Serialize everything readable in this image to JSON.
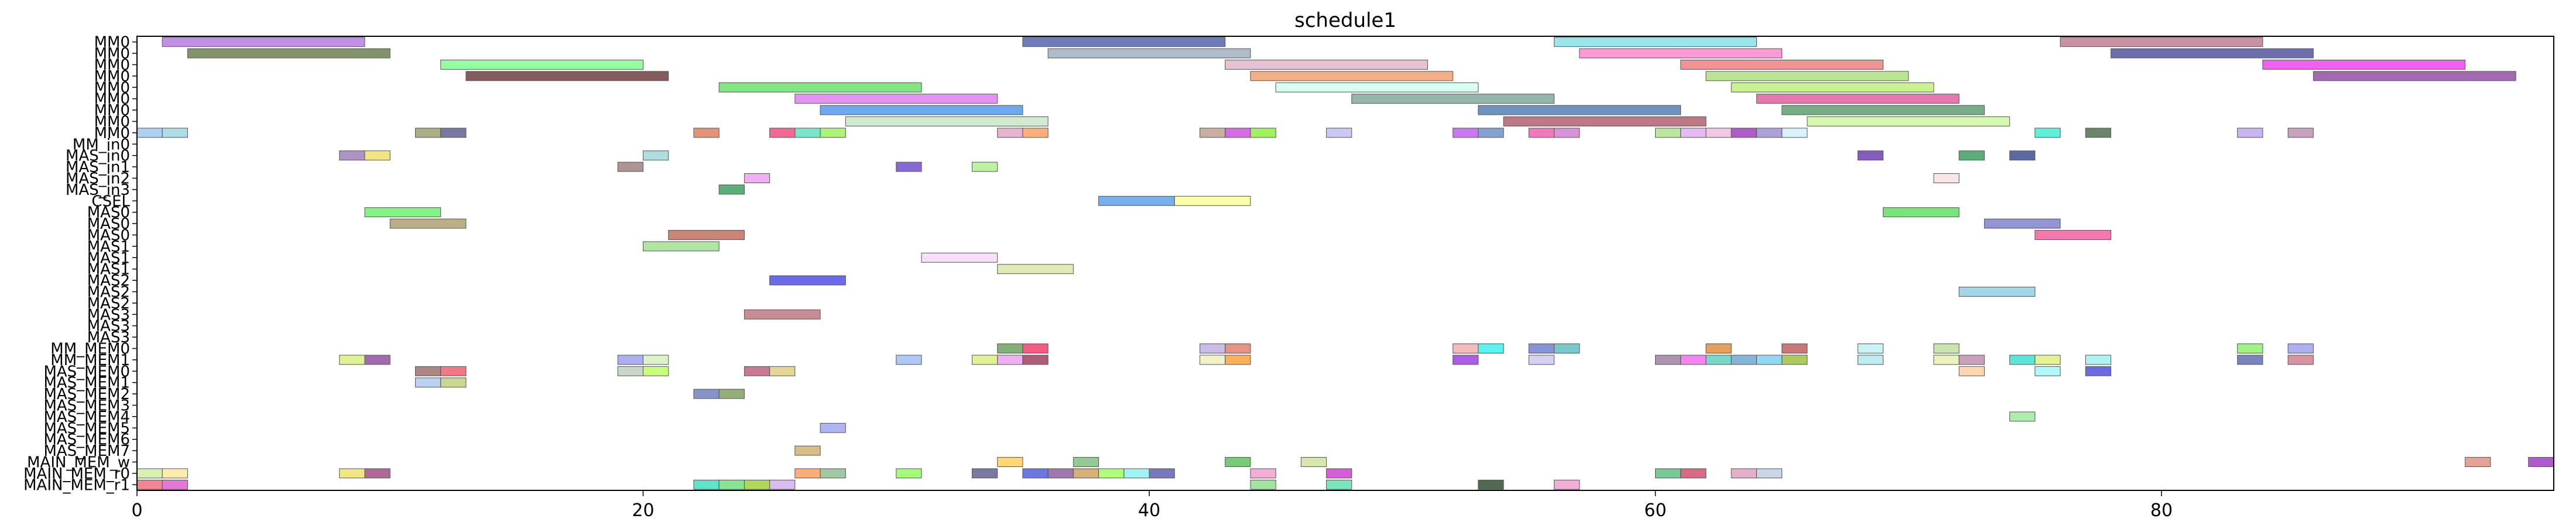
{
  "chart_data": {
    "type": "gantt",
    "title": "schedule1",
    "xlabel": "",
    "ylabel": "",
    "xlim": [
      0,
      95.5
    ],
    "xticks": [
      0,
      20,
      40,
      60,
      80
    ],
    "grid": false,
    "rows": [
      "MM0",
      "MM0",
      "MM0",
      "MM0",
      "MM0",
      "MM0",
      "MM0",
      "MM0",
      "MM0",
      "MM_in0",
      "MAS_in0",
      "MAS_in1",
      "MAS_in2",
      "MAS_in3",
      "CSEL",
      "MAS0",
      "MAS0",
      "MAS0",
      "MAS1",
      "MAS1",
      "MAS1",
      "MAS2",
      "MAS2",
      "MAS2",
      "MAS3",
      "MAS3",
      "MAS3",
      "MM_MEM0",
      "MM_MEM1",
      "MAS_MEM0",
      "MAS_MEM1",
      "MAS_MEM2",
      "MAS_MEM3",
      "MAS_MEM4",
      "MAS_MEM5",
      "MAS_MEM6",
      "MAS_MEM7",
      "MAIN_MEM_w",
      "MAIN_MEM_r0",
      "MAIN_MEM_r1"
    ],
    "tasks": [
      {
        "row": 0,
        "start": 1,
        "end": 9,
        "color": "#b57ee0"
      },
      {
        "row": 0,
        "start": 35,
        "end": 43,
        "color": "#5566aa"
      },
      {
        "row": 0,
        "start": 56,
        "end": 64,
        "color": "#88e0e8"
      },
      {
        "row": 0,
        "start": 76,
        "end": 84,
        "color": "#c07f90"
      },
      {
        "row": 1,
        "start": 2,
        "end": 10,
        "color": "#6b8050"
      },
      {
        "row": 1,
        "start": 36,
        "end": 44,
        "color": "#a0b0c0"
      },
      {
        "row": 1,
        "start": 57,
        "end": 65,
        "color": "#ff88cc"
      },
      {
        "row": 1,
        "start": 78,
        "end": 86,
        "color": "#5555a0"
      },
      {
        "row": 2,
        "start": 12,
        "end": 20,
        "color": "#80ff90"
      },
      {
        "row": 2,
        "start": 43,
        "end": 51,
        "color": "#e0b8cc"
      },
      {
        "row": 2,
        "start": 61,
        "end": 69,
        "color": "#f08080"
      },
      {
        "row": 2,
        "start": 84,
        "end": 92,
        "color": "#ee44ee"
      },
      {
        "row": 3,
        "start": 13,
        "end": 21,
        "color": "#704040"
      },
      {
        "row": 3,
        "start": 44,
        "end": 52,
        "color": "#f0a070"
      },
      {
        "row": 3,
        "start": 62,
        "end": 70,
        "color": "#b0e080"
      },
      {
        "row": 3,
        "start": 86,
        "end": 94,
        "color": "#9050a0"
      },
      {
        "row": 4,
        "start": 23,
        "end": 31,
        "color": "#70e070"
      },
      {
        "row": 4,
        "start": 45,
        "end": 53,
        "color": "#d0fff0"
      },
      {
        "row": 4,
        "start": 63,
        "end": 71,
        "color": "#c0f080"
      },
      {
        "row": 5,
        "start": 26,
        "end": 34,
        "color": "#e080f0"
      },
      {
        "row": 5,
        "start": 48,
        "end": 56,
        "color": "#80a8a0"
      },
      {
        "row": 5,
        "start": 64,
        "end": 72,
        "color": "#e060a0"
      },
      {
        "row": 6,
        "start": 27,
        "end": 35,
        "color": "#5599ee"
      },
      {
        "row": 6,
        "start": 53,
        "end": 61,
        "color": "#5580b0"
      },
      {
        "row": 6,
        "start": 65,
        "end": 73,
        "color": "#60a070"
      },
      {
        "row": 7,
        "start": 28,
        "end": 36,
        "color": "#c8e8c8"
      },
      {
        "row": 7,
        "start": 54,
        "end": 62,
        "color": "#b06070"
      },
      {
        "row": 7,
        "start": 66,
        "end": 74,
        "color": "#d0f8a0"
      },
      {
        "row": 8,
        "start": 0,
        "end": 1,
        "color": "#a0c8f0"
      },
      {
        "row": 8,
        "start": 1,
        "end": 2,
        "color": "#a0d8e0"
      },
      {
        "row": 8,
        "start": 11,
        "end": 12,
        "color": "#a0a070"
      },
      {
        "row": 8,
        "start": 12,
        "end": 13,
        "color": "#606090"
      },
      {
        "row": 8,
        "start": 22,
        "end": 23,
        "color": "#e08060"
      },
      {
        "row": 8,
        "start": 25,
        "end": 26,
        "color": "#f05080"
      },
      {
        "row": 8,
        "start": 26,
        "end": 27,
        "color": "#60e0c0"
      },
      {
        "row": 8,
        "start": 27,
        "end": 28,
        "color": "#a0f060"
      },
      {
        "row": 8,
        "start": 34,
        "end": 35,
        "color": "#e0a8c8"
      },
      {
        "row": 8,
        "start": 35,
        "end": 36,
        "color": "#ffa060"
      },
      {
        "row": 8,
        "start": 42,
        "end": 43,
        "color": "#c0a090"
      },
      {
        "row": 8,
        "start": 43,
        "end": 44,
        "color": "#d050e0"
      },
      {
        "row": 8,
        "start": 44,
        "end": 45,
        "color": "#90f040"
      },
      {
        "row": 8,
        "start": 47,
        "end": 48,
        "color": "#c0c0f0"
      },
      {
        "row": 8,
        "start": 52,
        "end": 53,
        "color": "#c060f0"
      },
      {
        "row": 8,
        "start": 53,
        "end": 54,
        "color": "#7090c8"
      },
      {
        "row": 8,
        "start": 55,
        "end": 56,
        "color": "#f060b0"
      },
      {
        "row": 8,
        "start": 56,
        "end": 57,
        "color": "#d080d0"
      },
      {
        "row": 8,
        "start": 60,
        "end": 61,
        "color": "#b0e090"
      },
      {
        "row": 8,
        "start": 61,
        "end": 62,
        "color": "#e0b0f0"
      },
      {
        "row": 8,
        "start": 62,
        "end": 63,
        "color": "#f0c0e0"
      },
      {
        "row": 8,
        "start": 63,
        "end": 64,
        "color": "#a040c0"
      },
      {
        "row": 8,
        "start": 64,
        "end": 65,
        "color": "#a090d0"
      },
      {
        "row": 8,
        "start": 65,
        "end": 66,
        "color": "#d0f0f8"
      },
      {
        "row": 8,
        "start": 75,
        "end": 76,
        "color": "#40f0d0"
      },
      {
        "row": 8,
        "start": 77,
        "end": 78,
        "color": "#507050"
      },
      {
        "row": 8,
        "start": 83,
        "end": 84,
        "color": "#c0a8f0"
      },
      {
        "row": 8,
        "start": 85,
        "end": 86,
        "color": "#c090b0"
      },
      {
        "row": 10,
        "start": 8,
        "end": 9,
        "color": "#a080b8"
      },
      {
        "row": 10,
        "start": 9,
        "end": 10,
        "color": "#f0e070"
      },
      {
        "row": 10,
        "start": 20,
        "end": 21,
        "color": "#a0d8d8"
      },
      {
        "row": 10,
        "start": 68,
        "end": 69,
        "color": "#7040b0"
      },
      {
        "row": 10,
        "start": 72,
        "end": 73,
        "color": "#40a060"
      },
      {
        "row": 10,
        "start": 74,
        "end": 75,
        "color": "#405090"
      },
      {
        "row": 11,
        "start": 19,
        "end": 20,
        "color": "#a08080"
      },
      {
        "row": 11,
        "start": 30,
        "end": 31,
        "color": "#7050d0"
      },
      {
        "row": 11,
        "start": 33,
        "end": 34,
        "color": "#b0f090"
      },
      {
        "row": 12,
        "start": 24,
        "end": 25,
        "color": "#f0a0f0"
      },
      {
        "row": 12,
        "start": 71,
        "end": 72,
        "color": "#f8e0e0"
      },
      {
        "row": 13,
        "start": 23,
        "end": 24,
        "color": "#40a060"
      },
      {
        "row": 14,
        "start": 38,
        "end": 41,
        "color": "#60a0e8"
      },
      {
        "row": 14,
        "start": 41,
        "end": 44,
        "color": "#f8ff98"
      },
      {
        "row": 15,
        "start": 9,
        "end": 12,
        "color": "#70f070"
      },
      {
        "row": 15,
        "start": 69,
        "end": 72,
        "color": "#60e060"
      },
      {
        "row": 16,
        "start": 10,
        "end": 13,
        "color": "#b0a070"
      },
      {
        "row": 16,
        "start": 73,
        "end": 76,
        "color": "#8080d0"
      },
      {
        "row": 17,
        "start": 21,
        "end": 24,
        "color": "#c07060"
      },
      {
        "row": 17,
        "start": 75,
        "end": 78,
        "color": "#f060a0"
      },
      {
        "row": 18,
        "start": 20,
        "end": 23,
        "color": "#a0e090"
      },
      {
        "row": 19,
        "start": 31,
        "end": 34,
        "color": "#f8d8f8"
      },
      {
        "row": 20,
        "start": 34,
        "end": 37,
        "color": "#d8e8a8"
      },
      {
        "row": 21,
        "start": 25,
        "end": 28,
        "color": "#5050e8"
      },
      {
        "row": 22,
        "start": 72,
        "end": 75,
        "color": "#90d0e8"
      },
      {
        "row": 24,
        "start": 24,
        "end": 27,
        "color": "#c07880"
      },
      {
        "row": 27,
        "start": 34,
        "end": 35,
        "color": "#70a060"
      },
      {
        "row": 27,
        "start": 35,
        "end": 36,
        "color": "#f04070"
      },
      {
        "row": 27,
        "start": 42,
        "end": 43,
        "color": "#c0b0e0"
      },
      {
        "row": 27,
        "start": 43,
        "end": 44,
        "color": "#e08070"
      },
      {
        "row": 27,
        "start": 52,
        "end": 53,
        "color": "#f0b0b0"
      },
      {
        "row": 27,
        "start": 53,
        "end": 54,
        "color": "#40f0f0"
      },
      {
        "row": 27,
        "start": 55,
        "end": 56,
        "color": "#7080d0"
      },
      {
        "row": 27,
        "start": 56,
        "end": 57,
        "color": "#60c0c0"
      },
      {
        "row": 27,
        "start": 62,
        "end": 63,
        "color": "#e09040"
      },
      {
        "row": 27,
        "start": 65,
        "end": 66,
        "color": "#c06060"
      },
      {
        "row": 27,
        "start": 68,
        "end": 69,
        "color": "#c0f0f8"
      },
      {
        "row": 27,
        "start": 71,
        "end": 72,
        "color": "#c0e0a0"
      },
      {
        "row": 27,
        "start": 83,
        "end": 84,
        "color": "#90f070"
      },
      {
        "row": 27,
        "start": 85,
        "end": 86,
        "color": "#a0a0f0"
      },
      {
        "row": 28,
        "start": 8,
        "end": 9,
        "color": "#d8f080"
      },
      {
        "row": 28,
        "start": 9,
        "end": 10,
        "color": "#9050a0"
      },
      {
        "row": 28,
        "start": 19,
        "end": 20,
        "color": "#a0a0f0"
      },
      {
        "row": 28,
        "start": 20,
        "end": 21,
        "color": "#d8f0c0"
      },
      {
        "row": 28,
        "start": 30,
        "end": 31,
        "color": "#a0c0f8"
      },
      {
        "row": 28,
        "start": 33,
        "end": 34,
        "color": "#d8f080"
      },
      {
        "row": 28,
        "start": 34,
        "end": 35,
        "color": "#f0a0f0"
      },
      {
        "row": 28,
        "start": 35,
        "end": 36,
        "color": "#a04060"
      },
      {
        "row": 28,
        "start": 42,
        "end": 43,
        "color": "#f0f0c0"
      },
      {
        "row": 28,
        "start": 43,
        "end": 44,
        "color": "#ffa040"
      },
      {
        "row": 28,
        "start": 52,
        "end": 53,
        "color": "#a040e0"
      },
      {
        "row": 28,
        "start": 55,
        "end": 56,
        "color": "#d0c8f0"
      },
      {
        "row": 28,
        "start": 60,
        "end": 61,
        "color": "#a080a0"
      },
      {
        "row": 28,
        "start": 61,
        "end": 62,
        "color": "#f070f0"
      },
      {
        "row": 28,
        "start": 62,
        "end": 63,
        "color": "#60d0c0"
      },
      {
        "row": 28,
        "start": 63,
        "end": 64,
        "color": "#70a8d0"
      },
      {
        "row": 28,
        "start": 64,
        "end": 65,
        "color": "#80d0f0"
      },
      {
        "row": 28,
        "start": 65,
        "end": 66,
        "color": "#a0c040"
      },
      {
        "row": 28,
        "start": 68,
        "end": 69,
        "color": "#b0e8f0"
      },
      {
        "row": 28,
        "start": 71,
        "end": 72,
        "color": "#e8f0b0"
      },
      {
        "row": 28,
        "start": 72,
        "end": 73,
        "color": "#c090b0"
      },
      {
        "row": 28,
        "start": 74,
        "end": 75,
        "color": "#40e0d0"
      },
      {
        "row": 28,
        "start": 75,
        "end": 76,
        "color": "#e0f080"
      },
      {
        "row": 28,
        "start": 77,
        "end": 78,
        "color": "#a0f0f0"
      },
      {
        "row": 28,
        "start": 83,
        "end": 84,
        "color": "#6070b0"
      },
      {
        "row": 28,
        "start": 85,
        "end": 86,
        "color": "#d08090"
      },
      {
        "row": 29,
        "start": 11,
        "end": 12,
        "color": "#a07070"
      },
      {
        "row": 29,
        "start": 12,
        "end": 13,
        "color": "#f06070"
      },
      {
        "row": 29,
        "start": 19,
        "end": 20,
        "color": "#c0d0c0"
      },
      {
        "row": 29,
        "start": 20,
        "end": 21,
        "color": "#c0ff60"
      },
      {
        "row": 29,
        "start": 24,
        "end": 25,
        "color": "#c06080"
      },
      {
        "row": 29,
        "start": 25,
        "end": 26,
        "color": "#e0d080"
      },
      {
        "row": 29,
        "start": 72,
        "end": 73,
        "color": "#ffd0a0"
      },
      {
        "row": 29,
        "start": 75,
        "end": 76,
        "color": "#a0f8f8"
      },
      {
        "row": 29,
        "start": 77,
        "end": 78,
        "color": "#5050e0"
      },
      {
        "row": 30,
        "start": 11,
        "end": 12,
        "color": "#b0c8f0"
      },
      {
        "row": 30,
        "start": 12,
        "end": 13,
        "color": "#c0d080"
      },
      {
        "row": 31,
        "start": 22,
        "end": 23,
        "color": "#7080c0"
      },
      {
        "row": 31,
        "start": 23,
        "end": 24,
        "color": "#80a060"
      },
      {
        "row": 33,
        "start": 74,
        "end": 75,
        "color": "#a0e8a0"
      },
      {
        "row": 34,
        "start": 27,
        "end": 28,
        "color": "#a0a8f0"
      },
      {
        "row": 36,
        "start": 26,
        "end": 27,
        "color": "#d0b070"
      },
      {
        "row": 37,
        "start": 34,
        "end": 35,
        "color": "#ffd060"
      },
      {
        "row": 37,
        "start": 37,
        "end": 38,
        "color": "#80c080"
      },
      {
        "row": 37,
        "start": 43,
        "end": 44,
        "color": "#60c060"
      },
      {
        "row": 37,
        "start": 46,
        "end": 47,
        "color": "#d0e0a0"
      },
      {
        "row": 37,
        "start": 92,
        "end": 93,
        "color": "#e09080"
      },
      {
        "row": 37,
        "start": 94.5,
        "end": 95.5,
        "color": "#a040c0"
      },
      {
        "row": 38,
        "start": 0,
        "end": 1,
        "color": "#d0f0a0"
      },
      {
        "row": 38,
        "start": 1,
        "end": 2,
        "color": "#ffe8a0"
      },
      {
        "row": 38,
        "start": 8,
        "end": 9,
        "color": "#f0e070"
      },
      {
        "row": 38,
        "start": 9,
        "end": 10,
        "color": "#a05080"
      },
      {
        "row": 38,
        "start": 26,
        "end": 27,
        "color": "#ffa060"
      },
      {
        "row": 38,
        "start": 27,
        "end": 28,
        "color": "#90c090"
      },
      {
        "row": 38,
        "start": 30,
        "end": 31,
        "color": "#90ff60"
      },
      {
        "row": 38,
        "start": 33,
        "end": 34,
        "color": "#606090"
      },
      {
        "row": 38,
        "start": 35,
        "end": 36,
        "color": "#5060e0"
      },
      {
        "row": 38,
        "start": 36,
        "end": 37,
        "color": "#9060a0"
      },
      {
        "row": 38,
        "start": 37,
        "end": 38,
        "color": "#d0a060"
      },
      {
        "row": 38,
        "start": 38,
        "end": 39,
        "color": "#a0ff60"
      },
      {
        "row": 38,
        "start": 39,
        "end": 40,
        "color": "#90f0f0"
      },
      {
        "row": 38,
        "start": 40,
        "end": 41,
        "color": "#6060b0"
      },
      {
        "row": 38,
        "start": 44,
        "end": 45,
        "color": "#f0a0d0"
      },
      {
        "row": 38,
        "start": 47,
        "end": 48,
        "color": "#d040d0"
      },
      {
        "row": 38,
        "start": 60,
        "end": 61,
        "color": "#60c080"
      },
      {
        "row": 38,
        "start": 61,
        "end": 62,
        "color": "#d05070"
      },
      {
        "row": 38,
        "start": 63,
        "end": 64,
        "color": "#e0a0c0"
      },
      {
        "row": 38,
        "start": 64,
        "end": 65,
        "color": "#c0d0e0"
      },
      {
        "row": 39,
        "start": 0,
        "end": 1,
        "color": "#f07080"
      },
      {
        "row": 39,
        "start": 1,
        "end": 2,
        "color": "#e060d0"
      },
      {
        "row": 39,
        "start": 22,
        "end": 23,
        "color": "#40e0c0"
      },
      {
        "row": 39,
        "start": 23,
        "end": 24,
        "color": "#70e080"
      },
      {
        "row": 39,
        "start": 24,
        "end": 25,
        "color": "#a0d040"
      },
      {
        "row": 39,
        "start": 25,
        "end": 26,
        "color": "#d0b0f0"
      },
      {
        "row": 39,
        "start": 44,
        "end": 45,
        "color": "#90e090"
      },
      {
        "row": 39,
        "start": 47,
        "end": 48,
        "color": "#60e0b0"
      },
      {
        "row": 39,
        "start": 53,
        "end": 54,
        "color": "#305030"
      },
      {
        "row": 39,
        "start": 56,
        "end": 57,
        "color": "#f0a0d0"
      }
    ]
  }
}
